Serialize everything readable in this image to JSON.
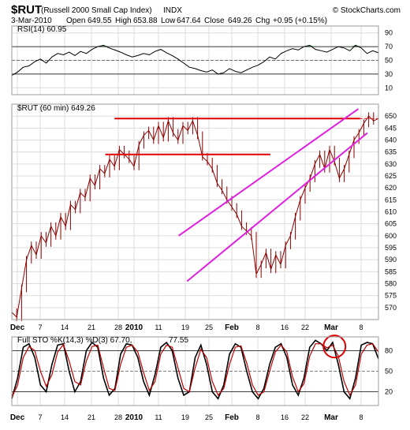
{
  "header": {
    "symbol": "$RUT",
    "name": "(Russell 2000 Small Cap Index)",
    "exchange": "INDX",
    "watermark": "© StockCharts.com",
    "date": "3-Mar-2010",
    "open_label": "Open",
    "open": "649.55",
    "high_label": "High",
    "high": "653.88",
    "low_label": "Low",
    "low": "647.64",
    "close_label": "Close",
    "close": "649.26",
    "chg_label": "Chg",
    "chg": "+0.95 (+0.15%)"
  },
  "chart_data": [
    {
      "type": "line",
      "panel": "RSI",
      "legend": "RSI(14) 60.95",
      "ylim": [
        0,
        100
      ],
      "yticks": [
        10,
        30,
        50,
        70,
        90
      ],
      "ref_lines": [
        70,
        50,
        30
      ],
      "color": "#000000",
      "overbought_fill": "#2e7d32",
      "series": [
        {
          "values": [
            28,
            33,
            40,
            42,
            48,
            52,
            46,
            55,
            60,
            58,
            62,
            57,
            63,
            60,
            66,
            70,
            72,
            68,
            65,
            62,
            58,
            55,
            57,
            60,
            58,
            63,
            66,
            61,
            57,
            52,
            46,
            40,
            38,
            35,
            33,
            36,
            30,
            32,
            38,
            34,
            32,
            36,
            40,
            43,
            48,
            55,
            52,
            60,
            64,
            67,
            65,
            70,
            72,
            66,
            64,
            62,
            66,
            70,
            68,
            64,
            72,
            68,
            60,
            64,
            61
          ]
        }
      ]
    },
    {
      "type": "line",
      "panel": "price",
      "legend": "$RUT (60 min) 649.26",
      "ylim": [
        565,
        655
      ],
      "yticks": [
        570,
        575,
        580,
        585,
        590,
        595,
        600,
        605,
        610,
        615,
        620,
        625,
        630,
        635,
        640,
        645,
        650
      ],
      "xticks": [
        "Dec",
        "7",
        "14",
        "21",
        "28",
        "2010",
        "11",
        "19",
        "25",
        "Feb",
        "8",
        "16",
        "22",
        "Mar",
        "8"
      ],
      "color": "#8b0000",
      "series": [
        {
          "values": [
            568,
            566,
            578,
            590,
            596,
            592,
            600,
            597,
            604,
            600,
            608,
            604,
            613,
            611,
            618,
            616,
            624,
            621,
            628,
            626,
            632,
            629,
            636,
            634,
            632,
            629,
            638,
            642,
            644,
            640,
            646,
            641,
            648,
            643,
            640,
            646,
            644,
            648,
            642,
            633,
            631,
            628,
            622,
            619,
            615,
            612,
            609,
            604,
            602,
            600,
            584,
            588,
            593,
            586,
            592,
            588,
            596,
            600,
            608,
            615,
            620,
            624,
            630,
            634,
            628,
            636,
            631,
            624,
            628,
            634,
            640,
            643,
            647,
            650,
            648,
            649
          ]
        }
      ],
      "annotations": [
        {
          "kind": "hline",
          "y": 649,
          "x_from": 0.28,
          "x_to": 0.95,
          "color": "#e00000"
        },
        {
          "kind": "hline",
          "y": 634,
          "x_from": 0.255,
          "x_to": 0.705,
          "color": "#e00000"
        },
        {
          "kind": "trendline",
          "from": [
            0.455,
            600
          ],
          "to": [
            0.945,
            653
          ],
          "color": "#e020e0"
        },
        {
          "kind": "trendline",
          "from": [
            0.478,
            581
          ],
          "to": [
            0.97,
            643
          ],
          "color": "#e020e0"
        }
      ]
    },
    {
      "type": "line",
      "panel": "STO",
      "legend": "Full STO %K(14,3) %D(3) 67.70,",
      "legend_d_value": "77.55",
      "ylim": [
        0,
        100
      ],
      "yticks": [
        20,
        50,
        80
      ],
      "ref_lines": [
        80,
        50,
        20
      ],
      "series": [
        {
          "name": "%K",
          "color": "#000000",
          "values": [
            10,
            40,
            85,
            90,
            70,
            30,
            20,
            60,
            88,
            90,
            50,
            20,
            35,
            80,
            92,
            85,
            40,
            15,
            25,
            75,
            90,
            88,
            70,
            35,
            15,
            45,
            85,
            92,
            80,
            40,
            15,
            20,
            70,
            88,
            60,
            20,
            10,
            30,
            75,
            90,
            85,
            50,
            20,
            10,
            25,
            60,
            85,
            90,
            70,
            30,
            15,
            40,
            85,
            95,
            90,
            80,
            92,
            60,
            20,
            10,
            40,
            88,
            92,
            90,
            68
          ]
        },
        {
          "name": "%D",
          "color": "#c00000",
          "values": [
            12,
            30,
            70,
            86,
            80,
            50,
            28,
            45,
            78,
            89,
            65,
            35,
            30,
            65,
            86,
            88,
            55,
            25,
            22,
            60,
            85,
            88,
            78,
            48,
            22,
            35,
            75,
            88,
            85,
            55,
            25,
            20,
            55,
            82,
            70,
            35,
            15,
            25,
            60,
            85,
            87,
            62,
            30,
            15,
            20,
            50,
            78,
            88,
            78,
            42,
            20,
            32,
            72,
            90,
            90,
            84,
            88,
            72,
            35,
            15,
            30,
            75,
            88,
            90,
            78
          ]
        }
      ]
    }
  ],
  "annotation_circle": {
    "color": "#e00000"
  }
}
